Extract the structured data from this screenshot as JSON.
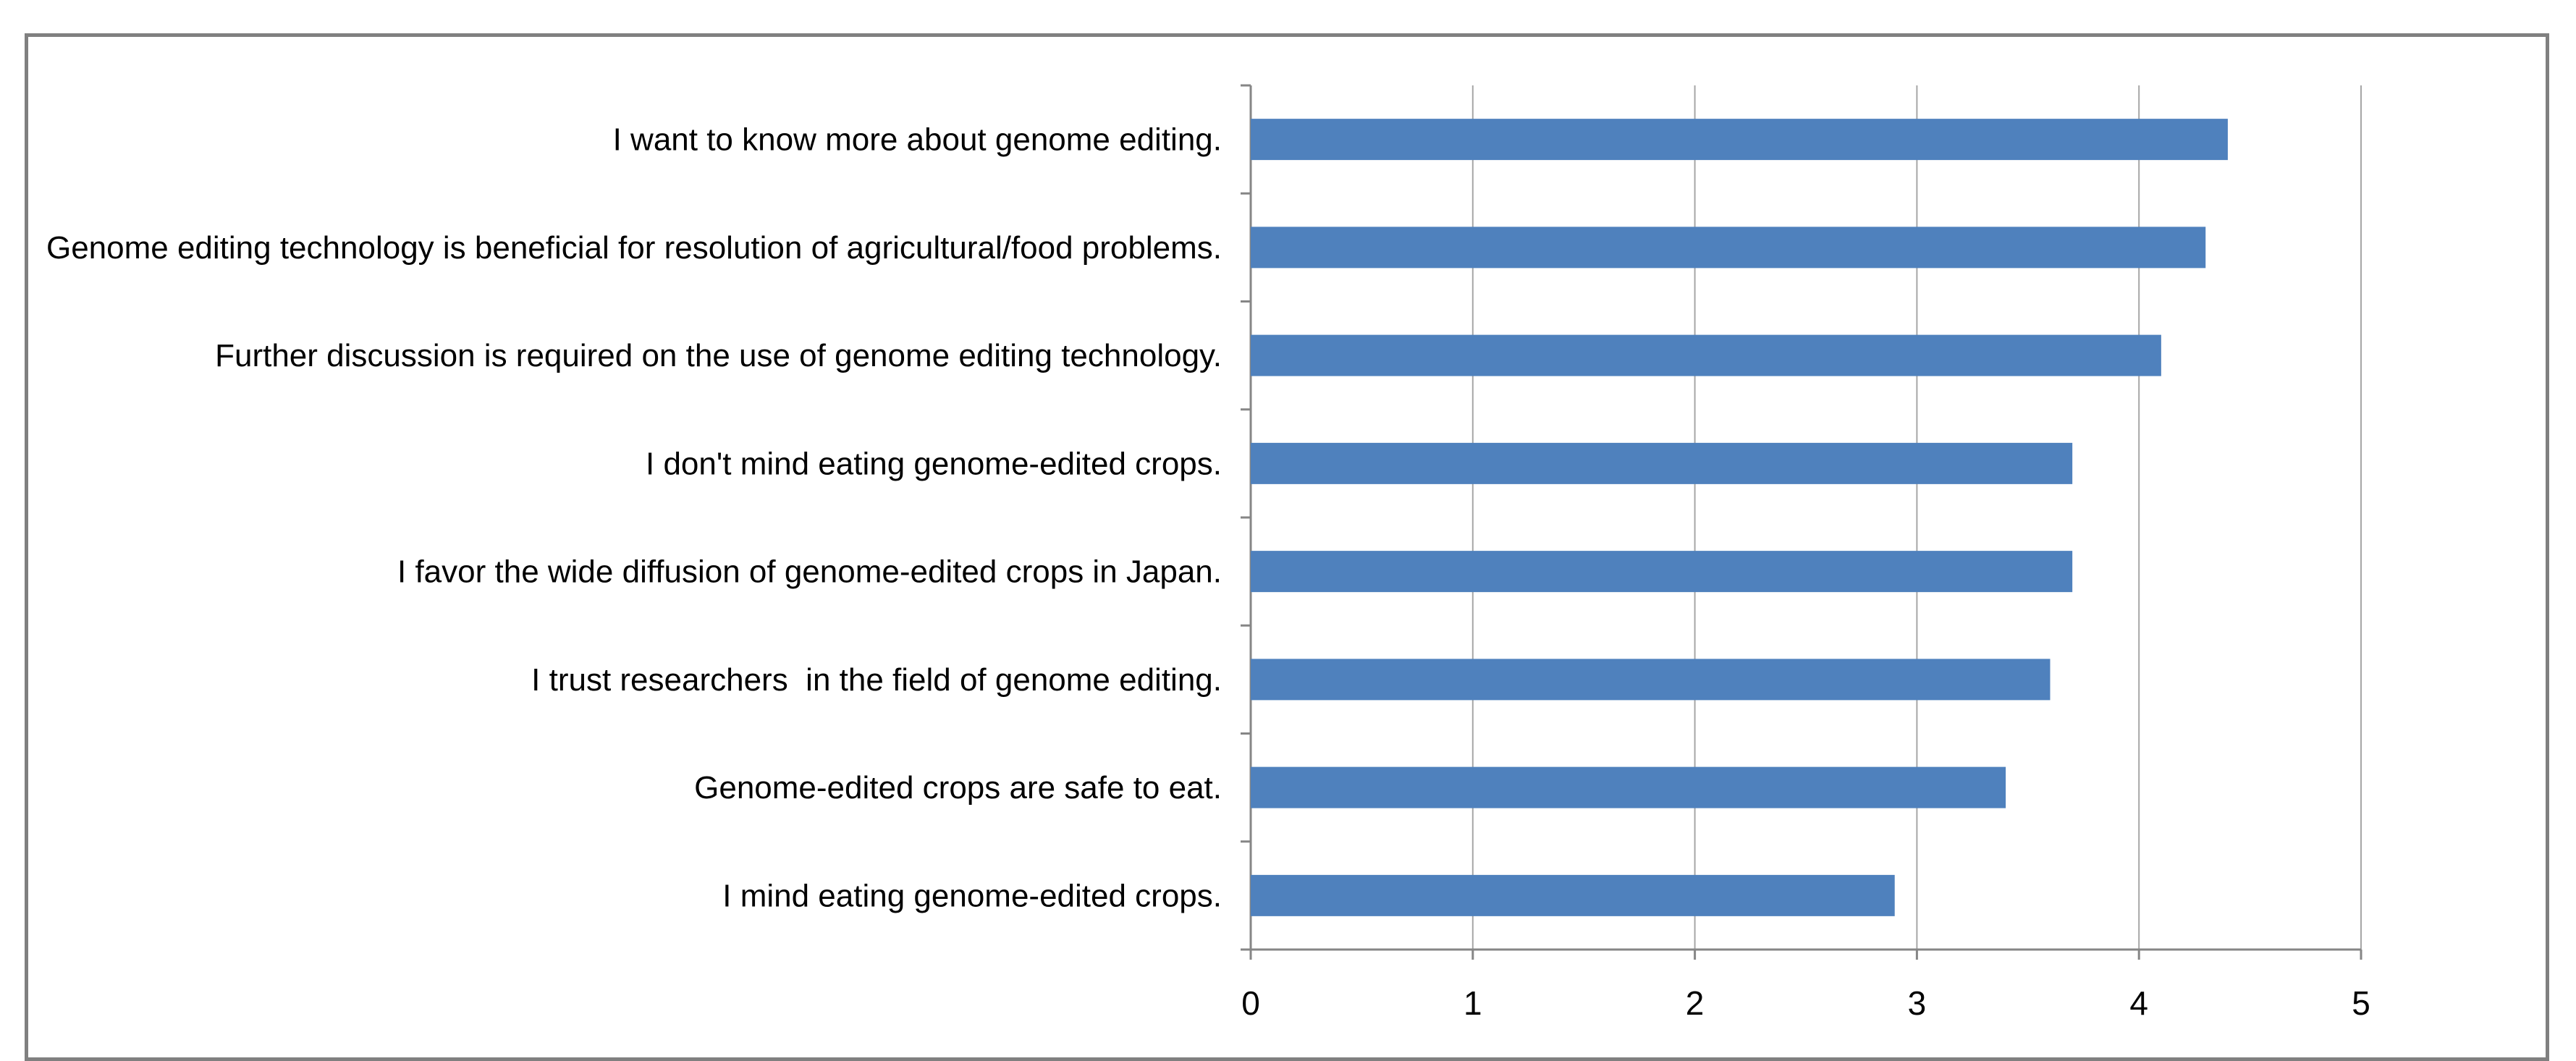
{
  "chart_data": {
    "type": "bar",
    "orientation": "horizontal",
    "categories": [
      "I want to know more about genome editing.",
      "Genome editing technology is beneficial for resolution of agricultural/food problems.",
      "Further discussion is required on the use of genome editing technology.",
      "I don't mind eating genome-edited crops.",
      "I favor the wide diffusion of genome-edited crops in Japan.",
      "I trust researchers  in the field of genome editing.",
      "Genome-edited crops are safe to eat.",
      "I mind eating genome-edited crops."
    ],
    "values": [
      4.4,
      4.3,
      4.1,
      3.7,
      3.7,
      3.6,
      3.4,
      2.9
    ],
    "xlim": [
      0,
      5
    ],
    "x_ticks": [
      "0",
      "1",
      "2",
      "3",
      "4",
      "5"
    ],
    "title": "",
    "xlabel": "",
    "ylabel": "",
    "grid": true,
    "legend": "none",
    "bar_color": "#4F81BD",
    "grid_color": "#A6A6A6"
  }
}
